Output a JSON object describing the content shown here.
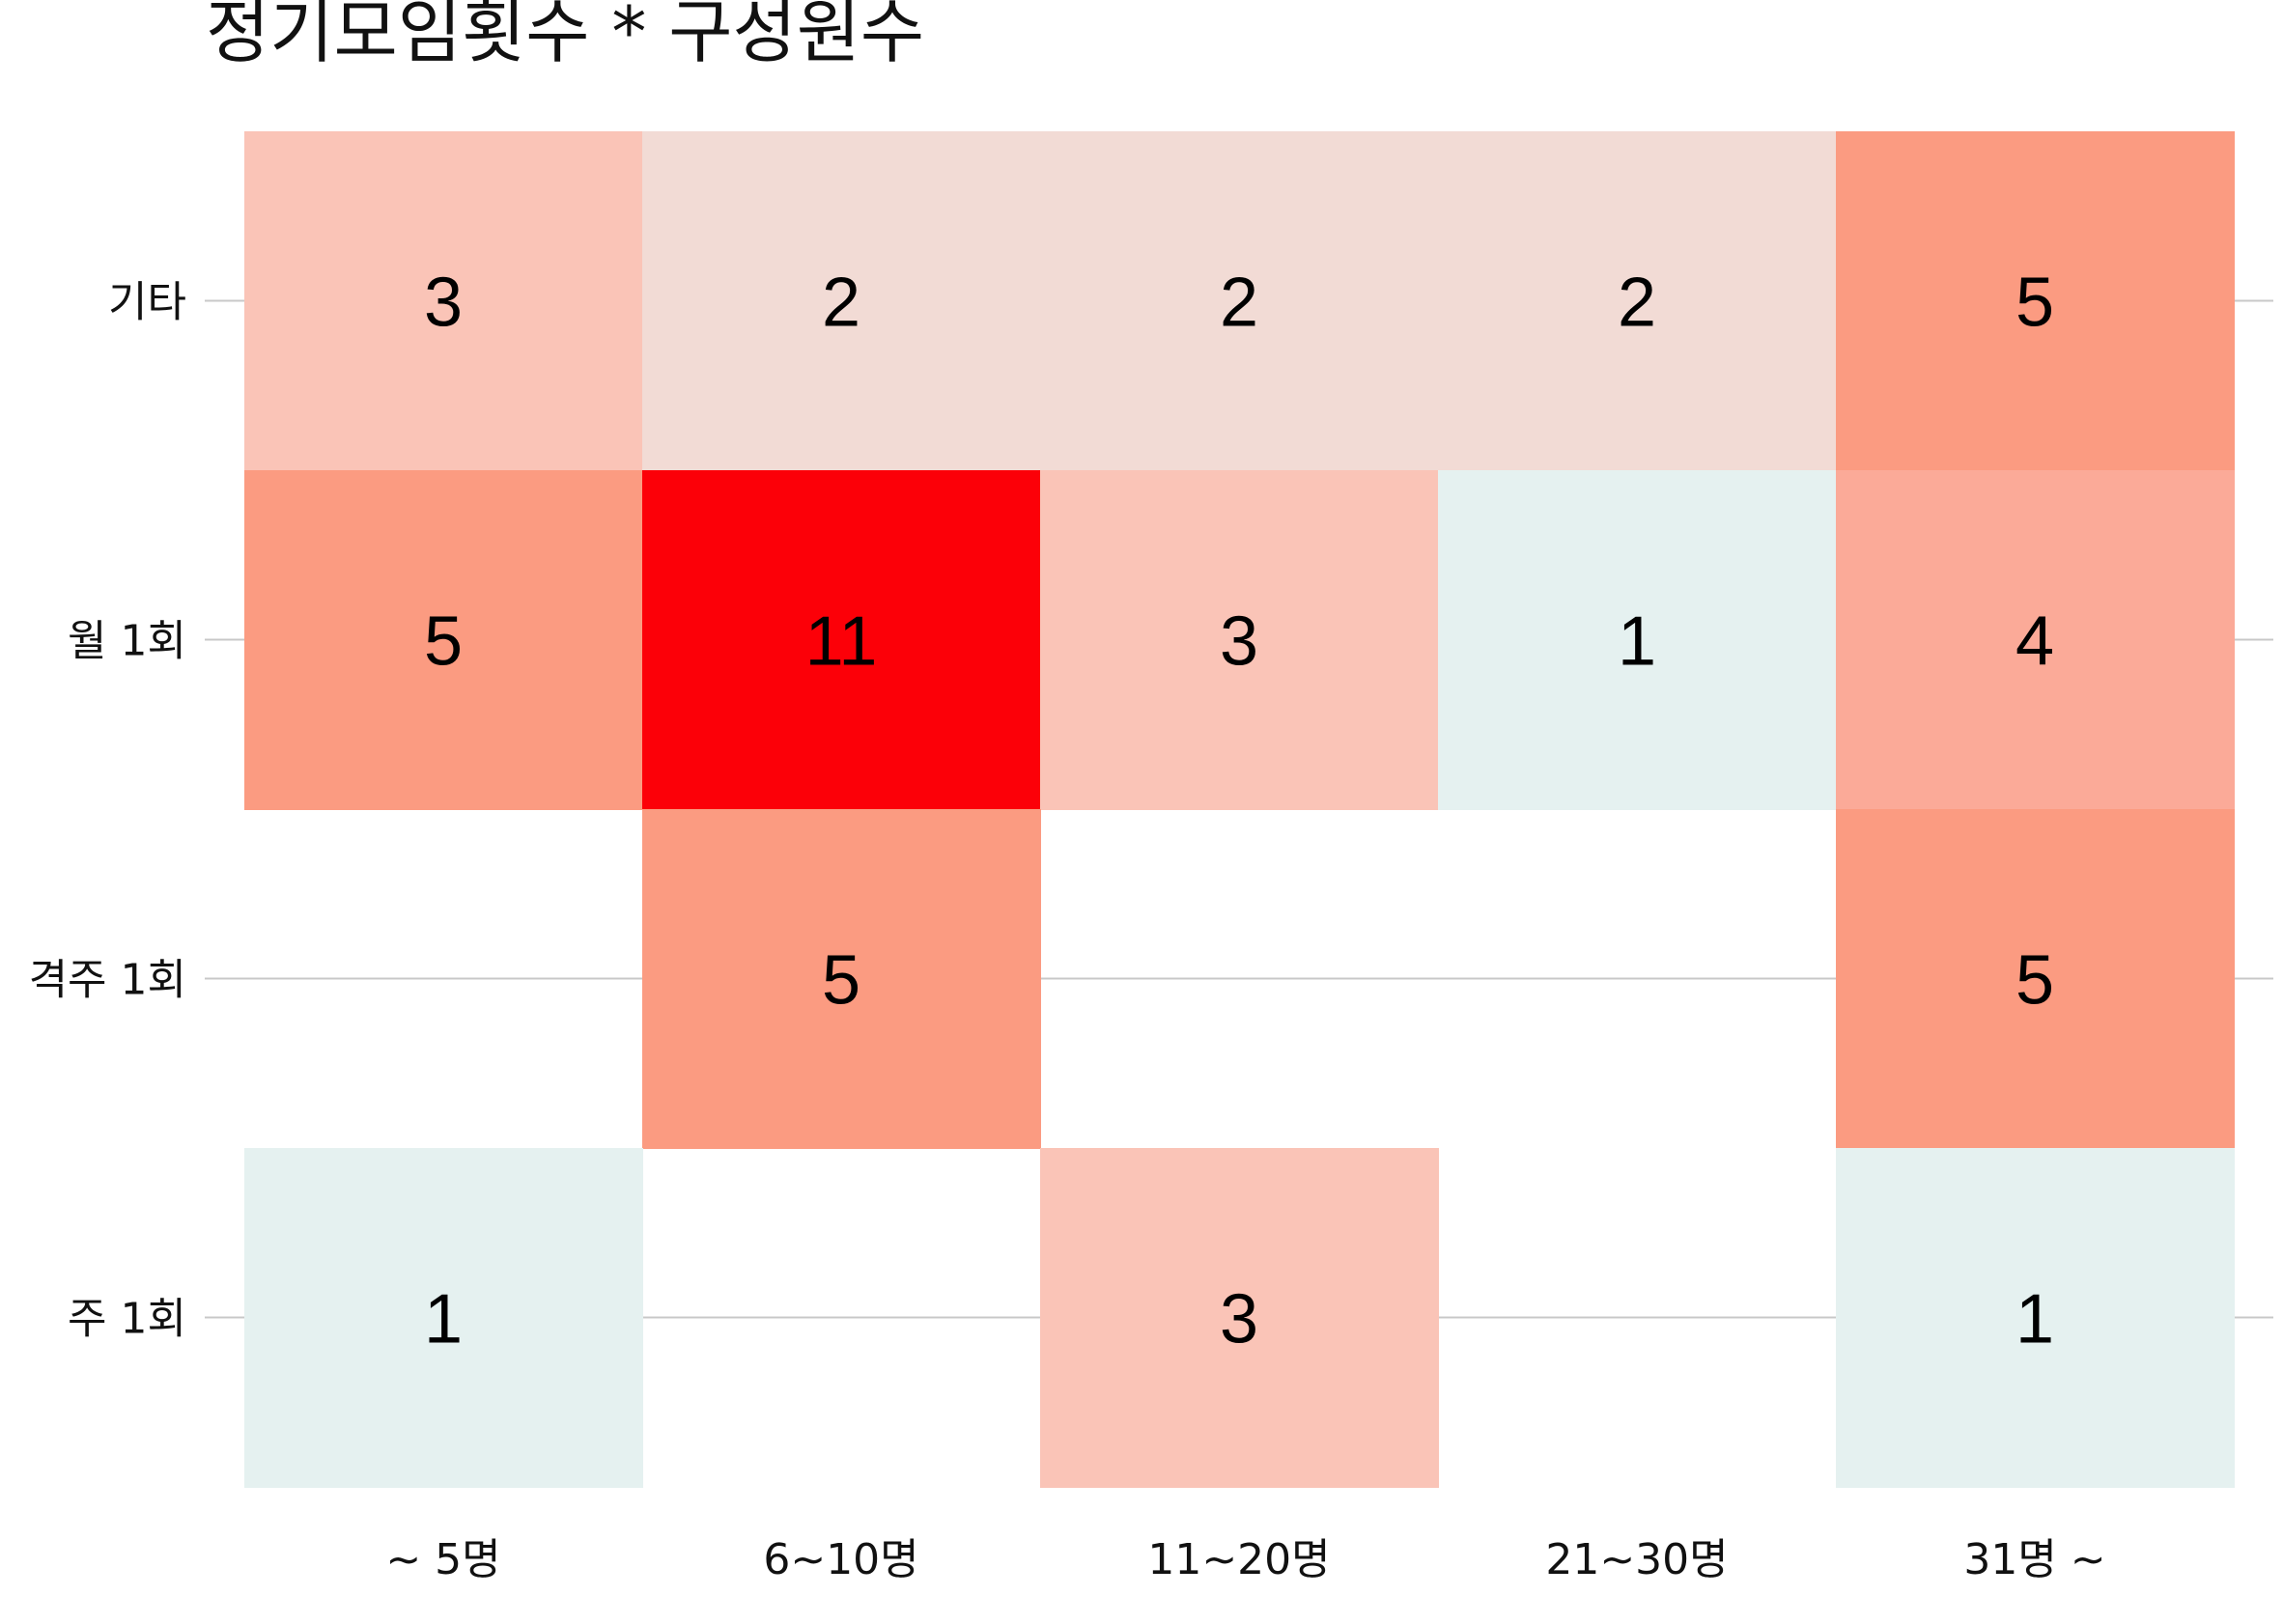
{
  "chart_data": {
    "type": "heatmap",
    "title": "정기모임횟수 * 구성원수",
    "xlabel": "",
    "ylabel": "",
    "x_categories": [
      "~ 5명",
      "6~10명",
      "11~20명",
      "21~30명",
      "31명 ~"
    ],
    "y_categories": [
      "기타",
      "월 1회",
      "격주 1회",
      "주 1회"
    ],
    "values": [
      [
        3,
        2,
        2,
        2,
        5
      ],
      [
        5,
        11,
        3,
        1,
        4
      ],
      [
        null,
        5,
        null,
        null,
        5
      ],
      [
        1,
        null,
        3,
        null,
        1
      ]
    ],
    "grid": true,
    "legend": "none",
    "colors": {
      "1": "#e5f1f0",
      "2": "#f2dbd5",
      "3": "#fac4b7",
      "4": "#fbaa98",
      "5": "#fb9b81",
      "11": "#fc0008",
      "gridline": "#c8c8c8"
    }
  }
}
